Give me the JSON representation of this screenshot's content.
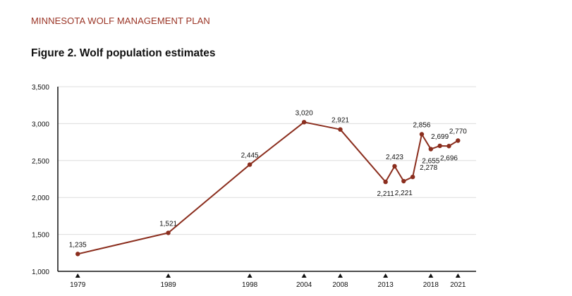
{
  "header": "MINNESOTA WOLF MANAGEMENT PLAN",
  "title": "Figure 2. Wolf population estimates",
  "colors": {
    "header": "#9a3324",
    "line": "#8b2e1e",
    "grid": "#dddddd",
    "axis": "#111111"
  },
  "chart_data": {
    "type": "line",
    "title": "Figure 2. Wolf population estimates",
    "xlabel": "",
    "ylabel": "",
    "xlim": [
      1976.8,
      2023
    ],
    "ylim": [
      1000,
      3500
    ],
    "yticks": [
      1000,
      1500,
      2000,
      2500,
      3000,
      3500
    ],
    "ytick_labels": [
      "1,000",
      "1,500",
      "2,000",
      "2,500",
      "3,000",
      "3,500"
    ],
    "xticks": [
      1979,
      1989,
      1998,
      2004,
      2008,
      2013,
      2018,
      2021
    ],
    "xtick_labels": [
      "1979",
      "1989",
      "1998",
      "2004",
      "2008",
      "2013",
      "2018",
      "2021"
    ],
    "grid": true,
    "legend": "none",
    "series": [
      {
        "name": "Wolf population",
        "x": [
          1979,
          1989,
          1998,
          2004,
          2008,
          2013,
          2014,
          2015,
          2016,
          2017,
          2018,
          2019,
          2020,
          2021
        ],
        "values": [
          1235,
          1521,
          2445,
          3020,
          2921,
          2211,
          2423,
          2221,
          2278,
          2856,
          2655,
          2699,
          2696,
          2770
        ],
        "labels": [
          "1,235",
          "1,521",
          "2,445",
          "3,020",
          "2,921",
          "2,211",
          "2,423",
          "2,221",
          "2,278",
          "2,856",
          "2,655",
          "2,699",
          "2,696",
          "2,770"
        ],
        "label_pos": [
          "above",
          "above",
          "above",
          "above",
          "above",
          "below",
          "above",
          "below",
          "right",
          "above",
          "below",
          "above",
          "below",
          "above"
        ]
      }
    ]
  }
}
